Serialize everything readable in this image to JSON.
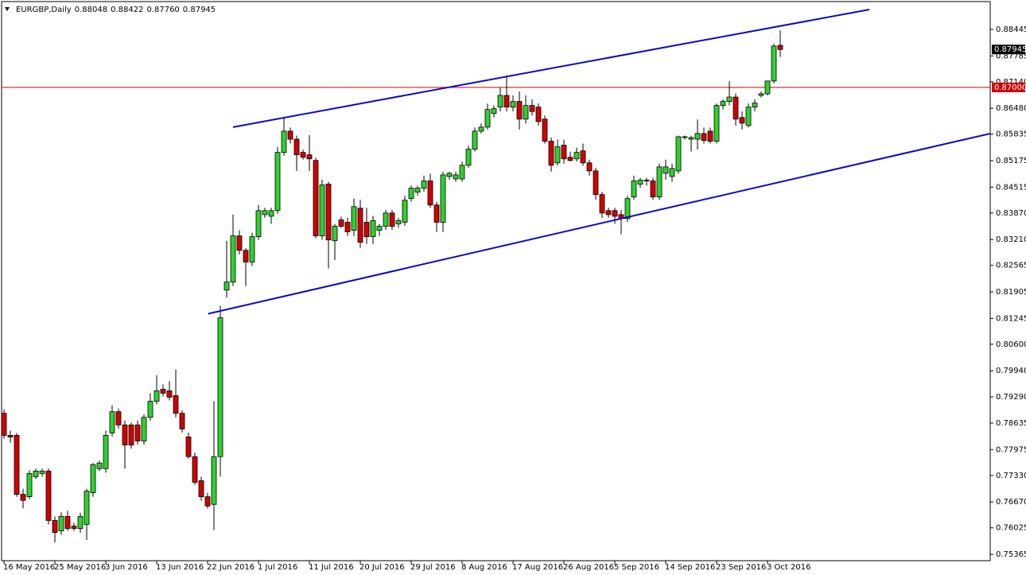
{
  "chart_data": {
    "type": "candlestick",
    "title": "EURGBP,Daily",
    "header_labels": [
      "0.88048",
      "0.88422",
      "0.87760",
      "0.87945"
    ],
    "categories": [
      "16 May 2016",
      null,
      null,
      null,
      null,
      null,
      null,
      null,
      "25 May 2016",
      null,
      null,
      null,
      null,
      null,
      null,
      null,
      "3 Jun 2016",
      null,
      null,
      null,
      null,
      null,
      null,
      null,
      "13 Jun 2016",
      null,
      null,
      null,
      null,
      null,
      null,
      null,
      "22 Jun 2016",
      null,
      null,
      null,
      null,
      null,
      null,
      null,
      "1 Jul 2016",
      null,
      null,
      null,
      null,
      null,
      null,
      null,
      "11 Jul 2016",
      null,
      null,
      null,
      null,
      null,
      null,
      null,
      "20 Jul 2016",
      null,
      null,
      null,
      null,
      null,
      null,
      null,
      "29 Jul 2016",
      null,
      null,
      null,
      null,
      null,
      null,
      null,
      "8 Aug 2016",
      null,
      null,
      null,
      null,
      null,
      null,
      null,
      "17 Aug 2016",
      null,
      null,
      null,
      null,
      null,
      null,
      null,
      "26 Aug 2016",
      null,
      null,
      null,
      null,
      null,
      null,
      null,
      "5 Sep 2016",
      null,
      null,
      null,
      null,
      null,
      null,
      null,
      "14 Sep 2016",
      null,
      null,
      null,
      null,
      null,
      null,
      null,
      "23 Sep 2016",
      null,
      null,
      null,
      null,
      null,
      null,
      null,
      "3 Oct 2016",
      null,
      null
    ],
    "open": [
      0.7888,
      0.7833,
      0.7833,
      0.7686,
      0.768,
      0.773,
      0.7738,
      0.7744,
      0.7621,
      0.7595,
      0.7631,
      0.7607,
      0.7601,
      0.7611,
      0.769,
      0.775,
      0.775,
      0.7839,
      0.7892,
      0.7859,
      0.7859,
      0.7859,
      0.7819,
      0.7878,
      0.7918,
      0.7948,
      0.7944,
      0.7932,
      0.7888,
      0.7829,
      0.778,
      0.772,
      0.768,
      0.7661,
      0.778,
      0.8195,
      0.8215,
      0.833,
      0.8294,
      0.8265,
      0.8328,
      0.8383,
      0.8379,
      0.8393,
      0.8538,
      0.8591,
      0.8571,
      0.8538,
      0.8532,
      0.8518,
      0.833,
      0.8459,
      0.8318,
      0.837,
      0.8364,
      0.8344,
      0.8399,
      0.8364,
      0.8328,
      0.8344,
      0.8354,
      0.8387,
      0.836,
      0.8364,
      0.8423,
      0.8439,
      0.8449,
      0.8467,
      0.8407,
      0.8364,
      0.8478,
      0.8472,
      0.8472,
      0.8506,
      0.8546,
      0.8591,
      0.8601,
      0.8635,
      0.8651,
      0.868,
      0.8651,
      0.8665,
      0.8621,
      0.8655,
      0.8651,
      0.8621,
      0.8566,
      0.8512,
      0.8556,
      0.8526,
      0.8522,
      0.8542,
      0.8512,
      0.8492,
      0.8433,
      0.8393,
      0.8393,
      0.8383,
      0.8373,
      0.8427,
      0.8459,
      0.8469,
      0.8467,
      0.8427,
      0.8486,
      0.8478,
      0.8492,
      0.8575,
      0.8571,
      0.8571,
      0.8585,
      0.8591,
      0.8566,
      0.8655,
      0.8665,
      0.8676,
      0.8625,
      0.8605,
      0.8651,
      0.868,
      0.8684,
      0.8716,
      0.88048
    ],
    "high": [
      0.7898,
      0.7845,
      0.7839,
      0.77,
      0.7746,
      0.775,
      0.775,
      0.775,
      0.7631,
      0.7641,
      0.7645,
      0.7615,
      0.764,
      0.77,
      0.7764,
      0.777,
      0.7845,
      0.7908,
      0.79,
      0.787,
      0.7865,
      0.787,
      0.7885,
      0.7938,
      0.7983,
      0.796,
      0.7968,
      0.7997,
      0.7895,
      0.784,
      0.779,
      0.773,
      0.769,
      0.7918,
      0.8156,
      0.8318,
      0.8383,
      0.8344,
      0.83,
      0.8338,
      0.8407,
      0.84,
      0.84,
      0.8552,
      0.8625,
      0.86,
      0.858,
      0.8545,
      0.8581,
      0.8525,
      0.847,
      0.8465,
      0.836,
      0.8378,
      0.8375,
      0.8423,
      0.842,
      0.84,
      0.838,
      0.836,
      0.8395,
      0.8395,
      0.8375,
      0.843,
      0.8455,
      0.8455,
      0.848,
      0.8485,
      0.8415,
      0.849,
      0.849,
      0.849,
      0.8515,
      0.8555,
      0.86,
      0.861,
      0.866,
      0.8655,
      0.87,
      0.873,
      0.868,
      0.869,
      0.868,
      0.867,
      0.866,
      0.863,
      0.8575,
      0.857,
      0.857,
      0.854,
      0.855,
      0.856,
      0.852,
      0.85,
      0.844,
      0.84,
      0.84,
      0.8395,
      0.843,
      0.848,
      0.8475,
      0.8475,
      0.8475,
      0.851,
      0.852,
      0.851,
      0.858,
      0.858,
      0.858,
      0.862,
      0.86,
      0.86,
      0.866,
      0.867,
      0.8716,
      0.8685,
      0.864,
      0.866,
      0.867,
      0.869,
      0.8716,
      0.8809,
      0.88422
    ],
    "low": [
      0.7825,
      0.7815,
      0.768,
      0.7651,
      0.7674,
      0.7724,
      0.773,
      0.7611,
      0.7566,
      0.7585,
      0.7595,
      0.7595,
      0.759,
      0.7572,
      0.768,
      0.7744,
      0.774,
      0.783,
      0.785,
      0.775,
      0.78,
      0.781,
      0.781,
      0.787,
      0.791,
      0.793,
      0.792,
      0.7878,
      0.784,
      0.7775,
      0.771,
      0.767,
      0.7651,
      0.7597,
      0.773,
      0.8176,
      0.8205,
      0.8284,
      0.8205,
      0.8255,
      0.832,
      0.8375,
      0.836,
      0.8385,
      0.853,
      0.856,
      0.8492,
      0.852,
      0.8492,
      0.8324,
      0.832,
      0.8249,
      0.827,
      0.835,
      0.833,
      0.833,
      0.83,
      0.831,
      0.831,
      0.833,
      0.8345,
      0.8345,
      0.835,
      0.8355,
      0.8415,
      0.843,
      0.844,
      0.84,
      0.834,
      0.834,
      0.847,
      0.8465,
      0.8465,
      0.85,
      0.854,
      0.8585,
      0.8595,
      0.8625,
      0.864,
      0.864,
      0.864,
      0.8595,
      0.861,
      0.863,
      0.8605,
      0.856,
      0.849,
      0.8505,
      0.851,
      0.8515,
      0.8515,
      0.8505,
      0.848,
      0.842,
      0.8375,
      0.8375,
      0.836,
      0.8334,
      0.8365,
      0.842,
      0.845,
      0.8455,
      0.842,
      0.842,
      0.847,
      0.8465,
      0.8485,
      0.857,
      0.854,
      0.8545,
      0.856,
      0.856,
      0.856,
      0.8645,
      0.8655,
      0.8605,
      0.8595,
      0.86,
      0.864,
      0.8675,
      0.868,
      0.871,
      0.8776
    ],
    "close": [
      0.7833,
      0.7829,
      0.7686,
      0.7671,
      0.7738,
      0.7744,
      0.7744,
      0.7621,
      0.7591,
      0.7631,
      0.7601,
      0.7601,
      0.7631,
      0.7694,
      0.776,
      0.7764,
      0.7833,
      0.7892,
      0.7859,
      0.7809,
      0.7809,
      0.7819,
      0.7878,
      0.7918,
      0.7944,
      0.7938,
      0.7928,
      0.7888,
      0.7849,
      0.778,
      0.7716,
      0.768,
      0.7657,
      0.778,
      0.8126,
      0.8215,
      0.833,
      0.8294,
      0.8265,
      0.8328,
      0.8393,
      0.8393,
      0.8393,
      0.8538,
      0.8591,
      0.8571,
      0.8532,
      0.8526,
      0.8522,
      0.833,
      0.8457,
      0.832,
      0.8354,
      0.8354,
      0.834,
      0.8403,
      0.8314,
      0.8328,
      0.8368,
      0.8354,
      0.8387,
      0.8354,
      0.8368,
      0.8419,
      0.8449,
      0.8449,
      0.8467,
      0.8407,
      0.8364,
      0.8482,
      0.8486,
      0.8482,
      0.8506,
      0.8546,
      0.8591,
      0.8601,
      0.8645,
      0.8647,
      0.868,
      0.8651,
      0.8665,
      0.8621,
      0.8655,
      0.864,
      0.8615,
      0.8566,
      0.8506,
      0.8552,
      0.8522,
      0.8518,
      0.8538,
      0.8512,
      0.8492,
      0.8433,
      0.8387,
      0.8383,
      0.8379,
      0.8373,
      0.8423,
      0.8467,
      0.8469,
      0.8467,
      0.8427,
      0.8502,
      0.8502,
      0.8498,
      0.8577,
      0.8577,
      0.8575,
      0.8585,
      0.8568,
      0.8566,
      0.8655,
      0.8665,
      0.8676,
      0.8621,
      0.8611,
      0.8651,
      0.8661,
      0.8684,
      0.8716,
      0.8803,
      0.87945
    ],
    "up_color": "#2fd02f",
    "down_color": "#d10000",
    "xlim": [
      -0.625,
      155
    ],
    "ylim": [
      0.75207,
      0.89178
    ],
    "yticks": [
      0.88445,
      0.87785,
      {
        "value": 0.8714,
        "label": "0.87140"
      },
      {
        "value": 0.8648,
        "label": "0.86480"
      },
      0.85835,
      0.85175,
      0.84515,
      {
        "value": 0.8387,
        "label": "0.83870"
      },
      {
        "value": 0.8321,
        "label": "0.83210"
      },
      0.82565,
      0.81905,
      0.81245,
      {
        "value": 0.806,
        "label": "0.80600"
      },
      {
        "value": 0.7994,
        "label": "0.79940"
      },
      {
        "value": 0.7929,
        "label": "0.79290"
      },
      0.78635,
      0.77975,
      {
        "value": 0.7733,
        "label": "0.77330"
      },
      {
        "value": 0.7667,
        "label": "0.76670"
      },
      0.76025,
      0.75365
    ],
    "hline": {
      "value": 0.87,
      "label": "0.87000",
      "color": "#d20000"
    },
    "trendlines": [
      {
        "x": [
          36,
          136
        ],
        "y": [
          0.8601,
          0.8894
        ],
        "color": "#0a0ac8"
      },
      {
        "x": [
          32.1,
          155
        ],
        "y": [
          0.8136,
          0.8585
        ],
        "color": "#0a0ac8"
      }
    ]
  }
}
